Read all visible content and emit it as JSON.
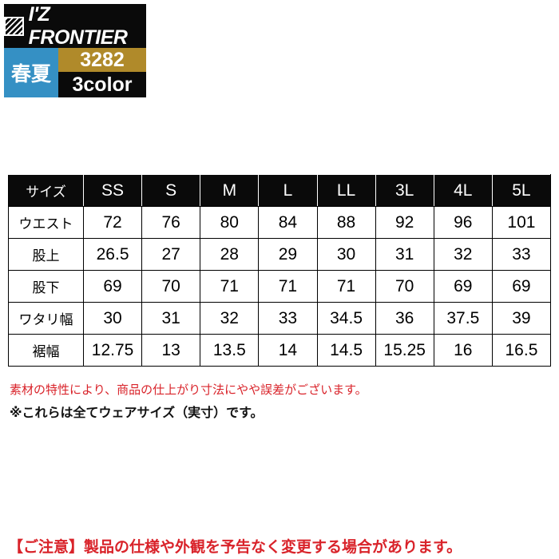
{
  "logo": {
    "brand": "I'Z FRONTIER",
    "season": "春夏",
    "product_code": "3282",
    "colors": "3color"
  },
  "colors": {
    "season_bg": "#3590c4",
    "code_bg": "#b08a2a",
    "note_red": "#d9232a"
  },
  "table": {
    "headers": [
      "サイズ",
      "SS",
      "S",
      "M",
      "L",
      "LL",
      "3L",
      "4L",
      "5L"
    ],
    "rows": [
      {
        "label": "ウエスト",
        "values": [
          "72",
          "76",
          "80",
          "84",
          "88",
          "92",
          "96",
          "101"
        ]
      },
      {
        "label": "股上",
        "values": [
          "26.5",
          "27",
          "28",
          "29",
          "30",
          "31",
          "32",
          "33"
        ]
      },
      {
        "label": "股下",
        "values": [
          "69",
          "70",
          "71",
          "71",
          "71",
          "70",
          "69",
          "69"
        ]
      },
      {
        "label": "ワタリ幅",
        "values": [
          "30",
          "31",
          "32",
          "33",
          "34.5",
          "36",
          "37.5",
          "39"
        ]
      },
      {
        "label": "裾幅",
        "values": [
          "12.75",
          "13",
          "13.5",
          "14",
          "14.5",
          "15.25",
          "16",
          "16.5"
        ]
      }
    ]
  },
  "notes": {
    "variance": "素材の特性により、商品の仕上がり寸法にやや誤差がございます。",
    "actual": "※これらは全てウェアサイズ（実寸）です。",
    "caution": "【ご注意】製品の仕様や外観を予告なく変更する場合があります。"
  }
}
